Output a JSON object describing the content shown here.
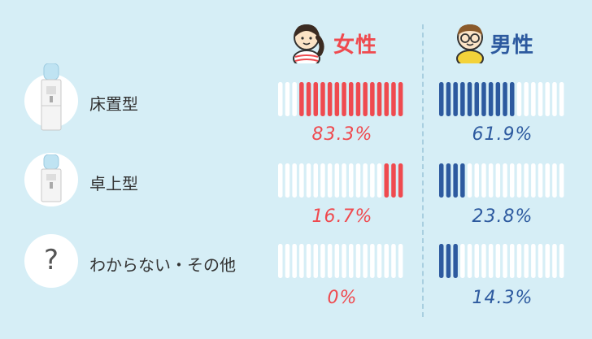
{
  "legend": {
    "female": {
      "label": "女性",
      "color": "#ef4a4f"
    },
    "male": {
      "label": "男性",
      "color": "#2d5a9f"
    }
  },
  "rows": [
    {
      "label": "床置型",
      "icon": "floor-water-server-icon"
    },
    {
      "label": "卓上型",
      "icon": "tabletop-water-server-icon"
    },
    {
      "label": "わからない・その他",
      "icon": "question-mark-icon",
      "icon_text": "?"
    }
  ],
  "chart_data": {
    "type": "bar",
    "categories": [
      "床置型",
      "卓上型",
      "わからない・その他"
    ],
    "series": [
      {
        "name": "女性",
        "values": [
          83.3,
          16.7,
          0
        ],
        "labels": [
          "83.3%",
          "16.7%",
          "0%"
        ],
        "color": "#ef4a4f"
      },
      {
        "name": "男性",
        "values": [
          61.9,
          23.8,
          14.3
        ],
        "labels": [
          "61.9%",
          "23.8%",
          "14.3%"
        ],
        "color": "#2d5a9f"
      }
    ],
    "segments_per_bar": 18,
    "empty_color": "#ffffff",
    "female_direction": "right-to-left",
    "male_direction": "left-to-right"
  }
}
